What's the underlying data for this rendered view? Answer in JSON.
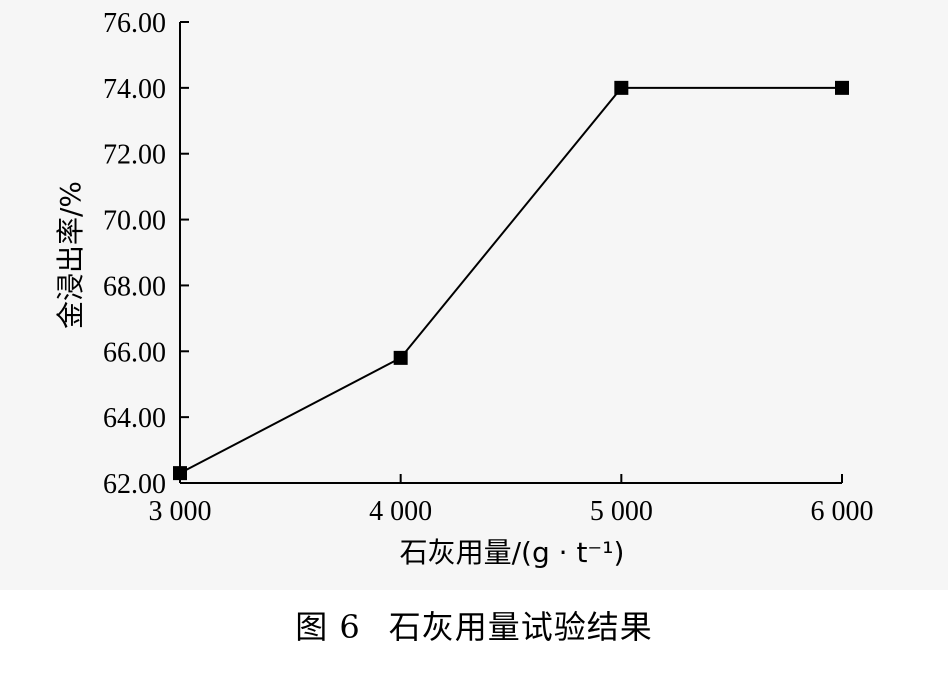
{
  "chart_data": {
    "type": "line",
    "x": [
      3000,
      4000,
      5000,
      6000
    ],
    "y": [
      62.3,
      65.8,
      74.0,
      74.0
    ],
    "x_tick_labels": [
      "3 000",
      "4 000",
      "5 000",
      "6 000"
    ],
    "y_tick_labels": [
      "62.00",
      "64.00",
      "66.00",
      "68.00",
      "70.00",
      "72.00",
      "74.00",
      "76.00"
    ],
    "xlim": [
      3000,
      6000
    ],
    "ylim": [
      62,
      76
    ],
    "xlabel": "石灰用量/(g · t⁻¹)",
    "ylabel": "金浸出率/%",
    "marker": "square",
    "grid": false,
    "line_color": "#000000"
  },
  "caption": {
    "figure_number": "图 6",
    "title": "石灰用量试验结果"
  }
}
